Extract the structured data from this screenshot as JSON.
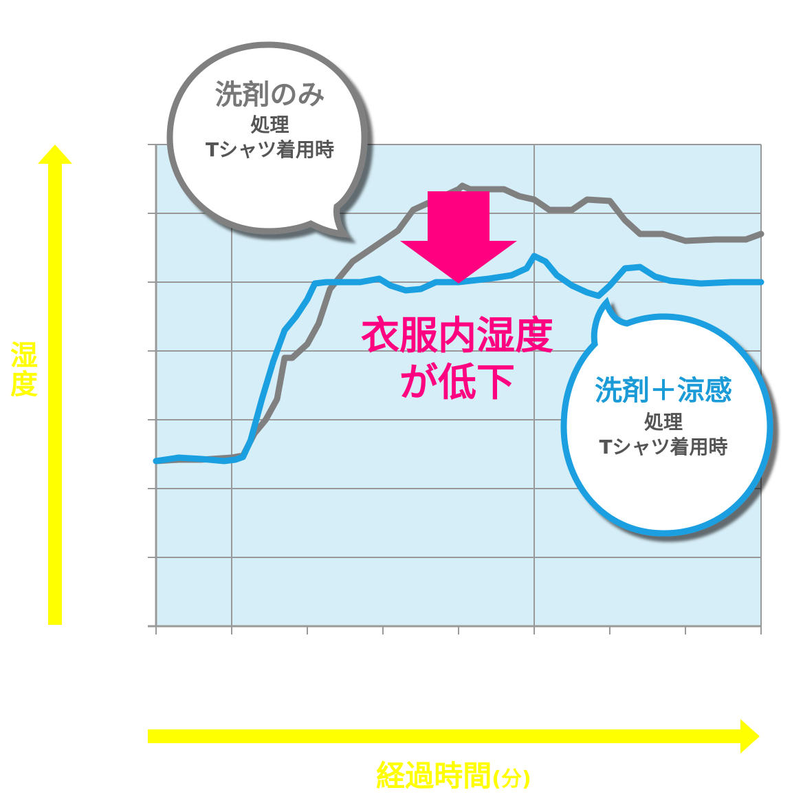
{
  "chart_data": {
    "type": "line",
    "title": "",
    "xlabel": "経過時間",
    "xlabel_unit": "(分)",
    "ylabel": "湿度",
    "x_tick_labels": [],
    "y_tick_labels": [],
    "xlim": [
      0,
      8
    ],
    "ylim": [
      0,
      7
    ],
    "grid": true,
    "background": "#d6eef8",
    "series": [
      {
        "color": "#808080",
        "points": [
          [
            0,
            2.4
          ],
          [
            0.3,
            2.42
          ],
          [
            0.6,
            2.42
          ],
          [
            1.0,
            2.45
          ],
          [
            1.15,
            2.48
          ],
          [
            1.3,
            2.8
          ],
          [
            1.45,
            3.0
          ],
          [
            1.6,
            3.3
          ],
          [
            1.7,
            3.9
          ],
          [
            1.8,
            3.9
          ],
          [
            2.0,
            4.1
          ],
          [
            2.15,
            4.4
          ],
          [
            2.3,
            4.9
          ],
          [
            2.45,
            5.1
          ],
          [
            2.6,
            5.3
          ],
          [
            2.8,
            5.45
          ],
          [
            3.0,
            5.6
          ],
          [
            3.2,
            5.75
          ],
          [
            3.4,
            6.05
          ],
          [
            3.6,
            6.15
          ],
          [
            3.8,
            6.25
          ],
          [
            4.0,
            6.35
          ],
          [
            4.05,
            6.4
          ],
          [
            4.15,
            6.35
          ],
          [
            4.6,
            6.35
          ],
          [
            4.8,
            6.25
          ],
          [
            5.0,
            6.2
          ],
          [
            5.2,
            6.05
          ],
          [
            5.5,
            6.05
          ],
          [
            5.7,
            6.2
          ],
          [
            6.0,
            6.18
          ],
          [
            6.2,
            5.9
          ],
          [
            6.4,
            5.7
          ],
          [
            6.7,
            5.7
          ],
          [
            7.0,
            5.6
          ],
          [
            7.4,
            5.62
          ],
          [
            7.8,
            5.62
          ],
          [
            8.0,
            5.7
          ]
        ]
      },
      {
        "color": "#1a9fe0",
        "points": [
          [
            0,
            2.4
          ],
          [
            0.3,
            2.45
          ],
          [
            0.6,
            2.43
          ],
          [
            0.9,
            2.4
          ],
          [
            1.05,
            2.42
          ],
          [
            1.15,
            2.46
          ],
          [
            1.25,
            2.7
          ],
          [
            1.4,
            3.3
          ],
          [
            1.55,
            3.85
          ],
          [
            1.7,
            4.3
          ],
          [
            1.85,
            4.5
          ],
          [
            2.0,
            4.75
          ],
          [
            2.1,
            4.98
          ],
          [
            2.25,
            5.0
          ],
          [
            2.7,
            5.0
          ],
          [
            2.95,
            5.05
          ],
          [
            3.1,
            4.95
          ],
          [
            3.3,
            4.88
          ],
          [
            3.5,
            4.9
          ],
          [
            3.7,
            5.0
          ],
          [
            4.0,
            5.0
          ],
          [
            4.4,
            5.05
          ],
          [
            4.7,
            5.1
          ],
          [
            4.9,
            5.2
          ],
          [
            5.0,
            5.38
          ],
          [
            5.15,
            5.3
          ],
          [
            5.3,
            5.1
          ],
          [
            5.5,
            4.95
          ],
          [
            5.7,
            4.85
          ],
          [
            5.85,
            4.8
          ],
          [
            6.0,
            4.95
          ],
          [
            6.2,
            5.2
          ],
          [
            6.4,
            5.22
          ],
          [
            6.6,
            5.08
          ],
          [
            6.8,
            5.02
          ],
          [
            7.0,
            5.0
          ],
          [
            7.2,
            4.98
          ],
          [
            7.6,
            5.0
          ],
          [
            8.0,
            5.0
          ]
        ]
      }
    ],
    "annotations": {
      "gray_callout": {
        "title": "洗剤のみ",
        "line1": "処理",
        "line2": "Tシャツ着用時",
        "color": "#808080"
      },
      "blue_callout": {
        "title": "洗剤＋涼感",
        "line1": "処理",
        "line2": "Tシャツ着用時",
        "color": "#1a9fe0"
      },
      "headline": {
        "line1": "衣服内湿度",
        "line2": "が低下",
        "color": "#ff0080"
      }
    },
    "arrow_colors": {
      "axis_arrows": "#ffff00",
      "down_arrow": "#ff0080"
    }
  }
}
